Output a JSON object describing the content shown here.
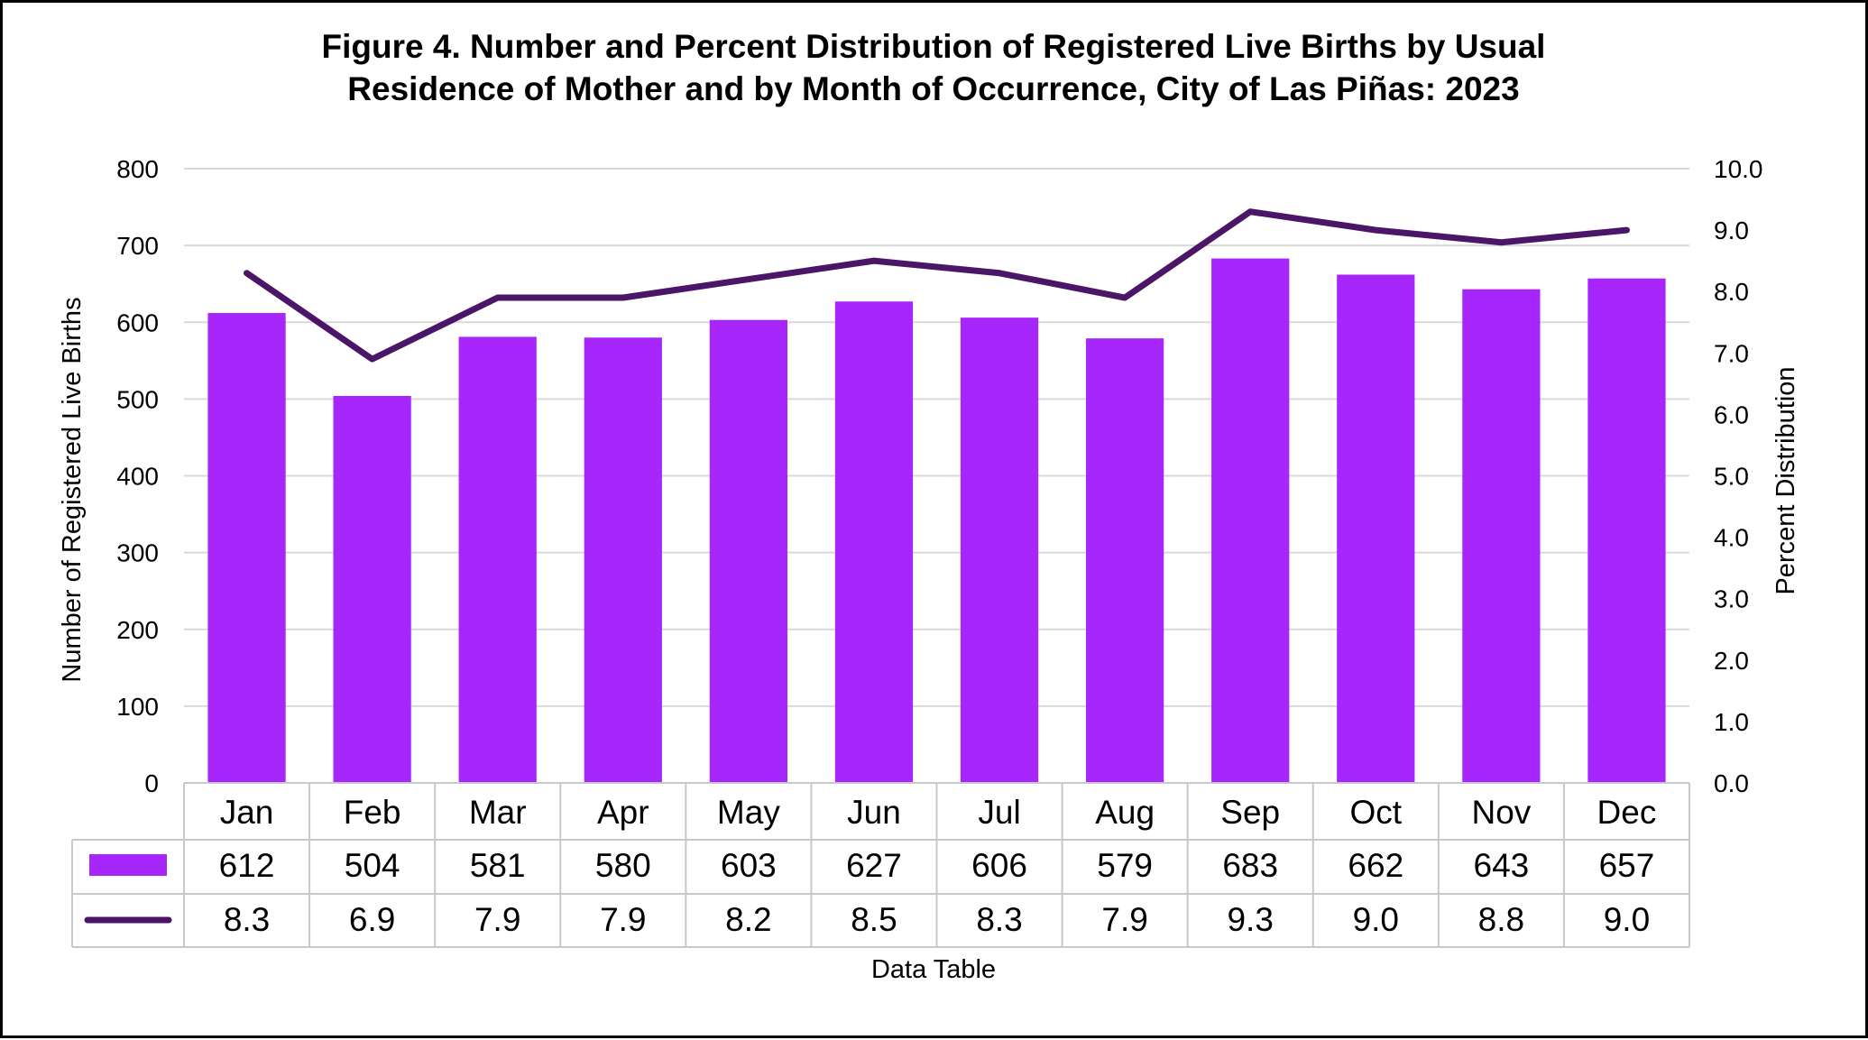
{
  "chart_data": {
    "type": "bar",
    "title_lines": [
      "Figure 4. Number and Percent Distribution of Registered Live Births by Usual",
      "Residence of Mother and by Month of Occurrence, City of Las Piñas: 2023"
    ],
    "categories": [
      "Jan",
      "Feb",
      "Mar",
      "Apr",
      "May",
      "Jun",
      "Jul",
      "Aug",
      "Sep",
      "Oct",
      "Nov",
      "Dec"
    ],
    "series": [
      {
        "type": "bar",
        "axis": "left",
        "values": [
          612,
          504,
          581,
          580,
          603,
          627,
          606,
          579,
          683,
          662,
          643,
          657
        ]
      },
      {
        "type": "line",
        "axis": "right",
        "values": [
          8.3,
          6.9,
          7.9,
          7.9,
          8.2,
          8.5,
          8.3,
          7.9,
          9.3,
          9.0,
          8.8,
          9.0
        ],
        "labels": [
          "8.3",
          "6.9",
          "7.9",
          "7.9",
          "8.2",
          "8.5",
          "8.3",
          "7.9",
          "9.3",
          "9.0",
          "8.8",
          "9.0"
        ]
      }
    ],
    "ylabel": "Number of Registered Live Births",
    "y2label": "Percent Distribution",
    "ylim": [
      0,
      800
    ],
    "y2lim": [
      0,
      10
    ],
    "yticks": [
      "0",
      "100",
      "200",
      "300",
      "400",
      "500",
      "600",
      "700",
      "800"
    ],
    "y2ticks": [
      "0.0",
      "1.0",
      "2.0",
      "3.0",
      "4.0",
      "5.0",
      "6.0",
      "7.0",
      "8.0",
      "9.0",
      "10.0"
    ],
    "table_caption": "Data Table",
    "grid": true,
    "colors": {
      "bar": "#A726FB",
      "line": "#4B1668",
      "grid": "#D9D9D9",
      "table_border": "#C8C8C8"
    }
  }
}
